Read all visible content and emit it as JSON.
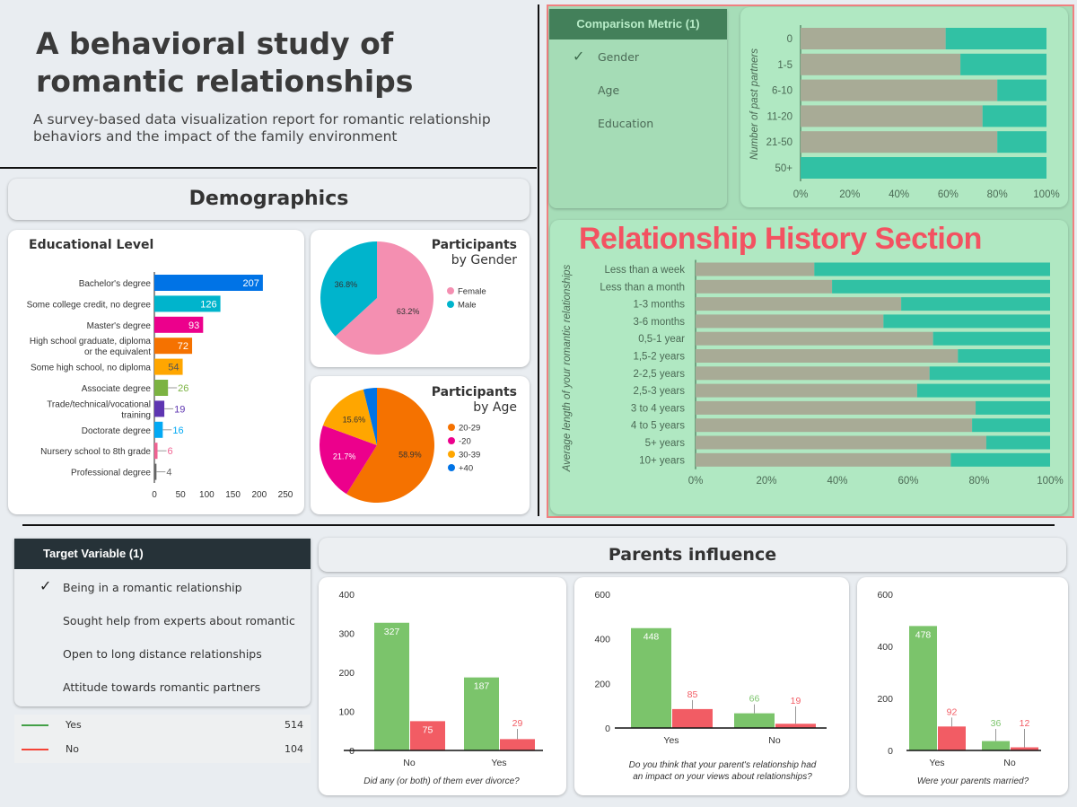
{
  "header": {
    "title": "A behavioral study of romantic relationships",
    "subtitle": "A survey-based data visualization report for romantic relationship behaviors and the impact of the family environment"
  },
  "demographics": {
    "title": "Demographics"
  },
  "parents": {
    "title": "Parents influence"
  },
  "overlay_label": "Relationship History Section",
  "comparison": {
    "title": "Comparison Metric (1)",
    "options": [
      {
        "label": "Gender",
        "checked": true
      },
      {
        "label": "Age",
        "checked": false
      },
      {
        "label": "Education",
        "checked": false
      }
    ]
  },
  "target": {
    "title": "Target Variable (1)",
    "options": [
      {
        "label": "Being in a romantic relationship",
        "checked": true
      },
      {
        "label": "Sought help from experts about romantic",
        "checked": false
      },
      {
        "label": "Open to long distance relationships",
        "checked": false
      },
      {
        "label": "Attitude towards romantic partners",
        "checked": false
      }
    ],
    "legend": [
      {
        "label": "Yes",
        "value": "514",
        "color": "#43a047"
      },
      {
        "label": "No",
        "value": "104",
        "color": "#f44336"
      }
    ]
  },
  "colors": {
    "yes": "#7bc46b",
    "no": "#f25c64",
    "stack_a": "#a8ab96",
    "stack_b": "#31c1a4",
    "section_border": "#f08080"
  },
  "chart_data": [
    {
      "id": "education",
      "type": "bar",
      "orientation": "horizontal",
      "title": "Educational Level",
      "categories": [
        "Bachelor's degree",
        "Some college credit, no degree",
        "Master's degree",
        "High school graduate, diploma or the equivalent",
        "Some high school, no diploma",
        "Associate degree",
        "Trade/technical/vocational training",
        "Doctorate degree",
        "Nursery school to 8th grade",
        "Professional degree"
      ],
      "values": [
        207,
        126,
        93,
        72,
        54,
        26,
        19,
        16,
        6,
        4
      ],
      "colors": [
        "#0073e6",
        "#00b4cc",
        "#ec008c",
        "#f57200",
        "#ffa600",
        "#7cb342",
        "#5e35b1",
        "#03a9f4",
        "#f06292",
        "#666666"
      ],
      "xlim": [
        0,
        250
      ],
      "xticks": [
        "0",
        "50",
        "100",
        "150",
        "200",
        "250"
      ]
    },
    {
      "id": "gender",
      "type": "pie",
      "title": "Participants",
      "subtitle": "by Gender",
      "slices": [
        {
          "label": "Female",
          "value": 63.2,
          "text": "63.2%",
          "color": "#f48fb1"
        },
        {
          "label": "Male",
          "value": 36.8,
          "text": "36.8%",
          "color": "#00b4cc"
        }
      ]
    },
    {
      "id": "age",
      "type": "pie",
      "title": "Participants",
      "subtitle": "by Age",
      "slices": [
        {
          "label": "20-29",
          "value": 58.9,
          "text": "58.9%",
          "color": "#f57200"
        },
        {
          "label": "-20",
          "value": 21.7,
          "text": "21.7%",
          "color": "#ec008c"
        },
        {
          "label": "30-39",
          "value": 15.6,
          "text": "15.6%",
          "color": "#ffa600"
        },
        {
          "label": "+40",
          "value": 3.8,
          "text": "",
          "color": "#0073e6"
        }
      ]
    },
    {
      "id": "past_partners",
      "type": "bar",
      "stacked": "percent",
      "ylabel": "Number of past partners",
      "categories": [
        "0",
        "1-5",
        "6-10",
        "11-20",
        "21-50",
        "50+"
      ],
      "values": [
        59,
        65,
        80,
        74,
        80,
        0
      ],
      "xticks": [
        "0%",
        "20%",
        "40%",
        "60%",
        "80%",
        "100%"
      ],
      "xlim": [
        0,
        100
      ]
    },
    {
      "id": "relationship_length",
      "type": "bar",
      "stacked": "percent",
      "ylabel": "Average length of your romantic relationships",
      "categories": [
        "Less than a week",
        "Less than a month",
        "1-3 months",
        "3-6 months",
        "0,5-1 year",
        "1,5-2 years",
        "2-2,5 years",
        "2,5-3 years",
        "3 to 4 years",
        "4 to 5 years",
        "5+ years",
        "10+ years"
      ],
      "values": [
        33.5,
        38.5,
        58,
        53,
        67,
        74,
        66,
        62.5,
        79,
        78,
        82,
        72
      ],
      "xticks": [
        "0%",
        "20%",
        "40%",
        "60%",
        "80%",
        "100%"
      ],
      "xlim": [
        0,
        100
      ]
    },
    {
      "id": "divorce",
      "type": "bar",
      "xlabel": "Did any (or both) of them ever divorce?",
      "categories": [
        "No",
        "Yes"
      ],
      "series": [
        {
          "key": "yes",
          "values": [
            327,
            187
          ]
        },
        {
          "key": "no",
          "values": [
            75,
            29
          ]
        }
      ],
      "ylim": [
        0,
        400
      ],
      "yticks": [
        "0",
        "100",
        "200",
        "300",
        "400"
      ]
    },
    {
      "id": "impact",
      "type": "bar",
      "xlabel": "Do you think that your parent's relationship had an impact on your views about relationships?",
      "categories": [
        "Yes",
        "No"
      ],
      "series": [
        {
          "key": "yes",
          "values": [
            448,
            66
          ]
        },
        {
          "key": "no",
          "values": [
            85,
            19
          ]
        }
      ],
      "ylim": [
        0,
        600
      ],
      "yticks": [
        "0",
        "200",
        "400",
        "600"
      ]
    },
    {
      "id": "married",
      "type": "bar",
      "xlabel": "Were your parents married?",
      "categories": [
        "Yes",
        "No"
      ],
      "series": [
        {
          "key": "yes",
          "values": [
            478,
            36
          ]
        },
        {
          "key": "no",
          "values": [
            92,
            12
          ]
        }
      ],
      "ylim": [
        0,
        600
      ],
      "yticks": [
        "0",
        "200",
        "400",
        "600"
      ]
    }
  ]
}
